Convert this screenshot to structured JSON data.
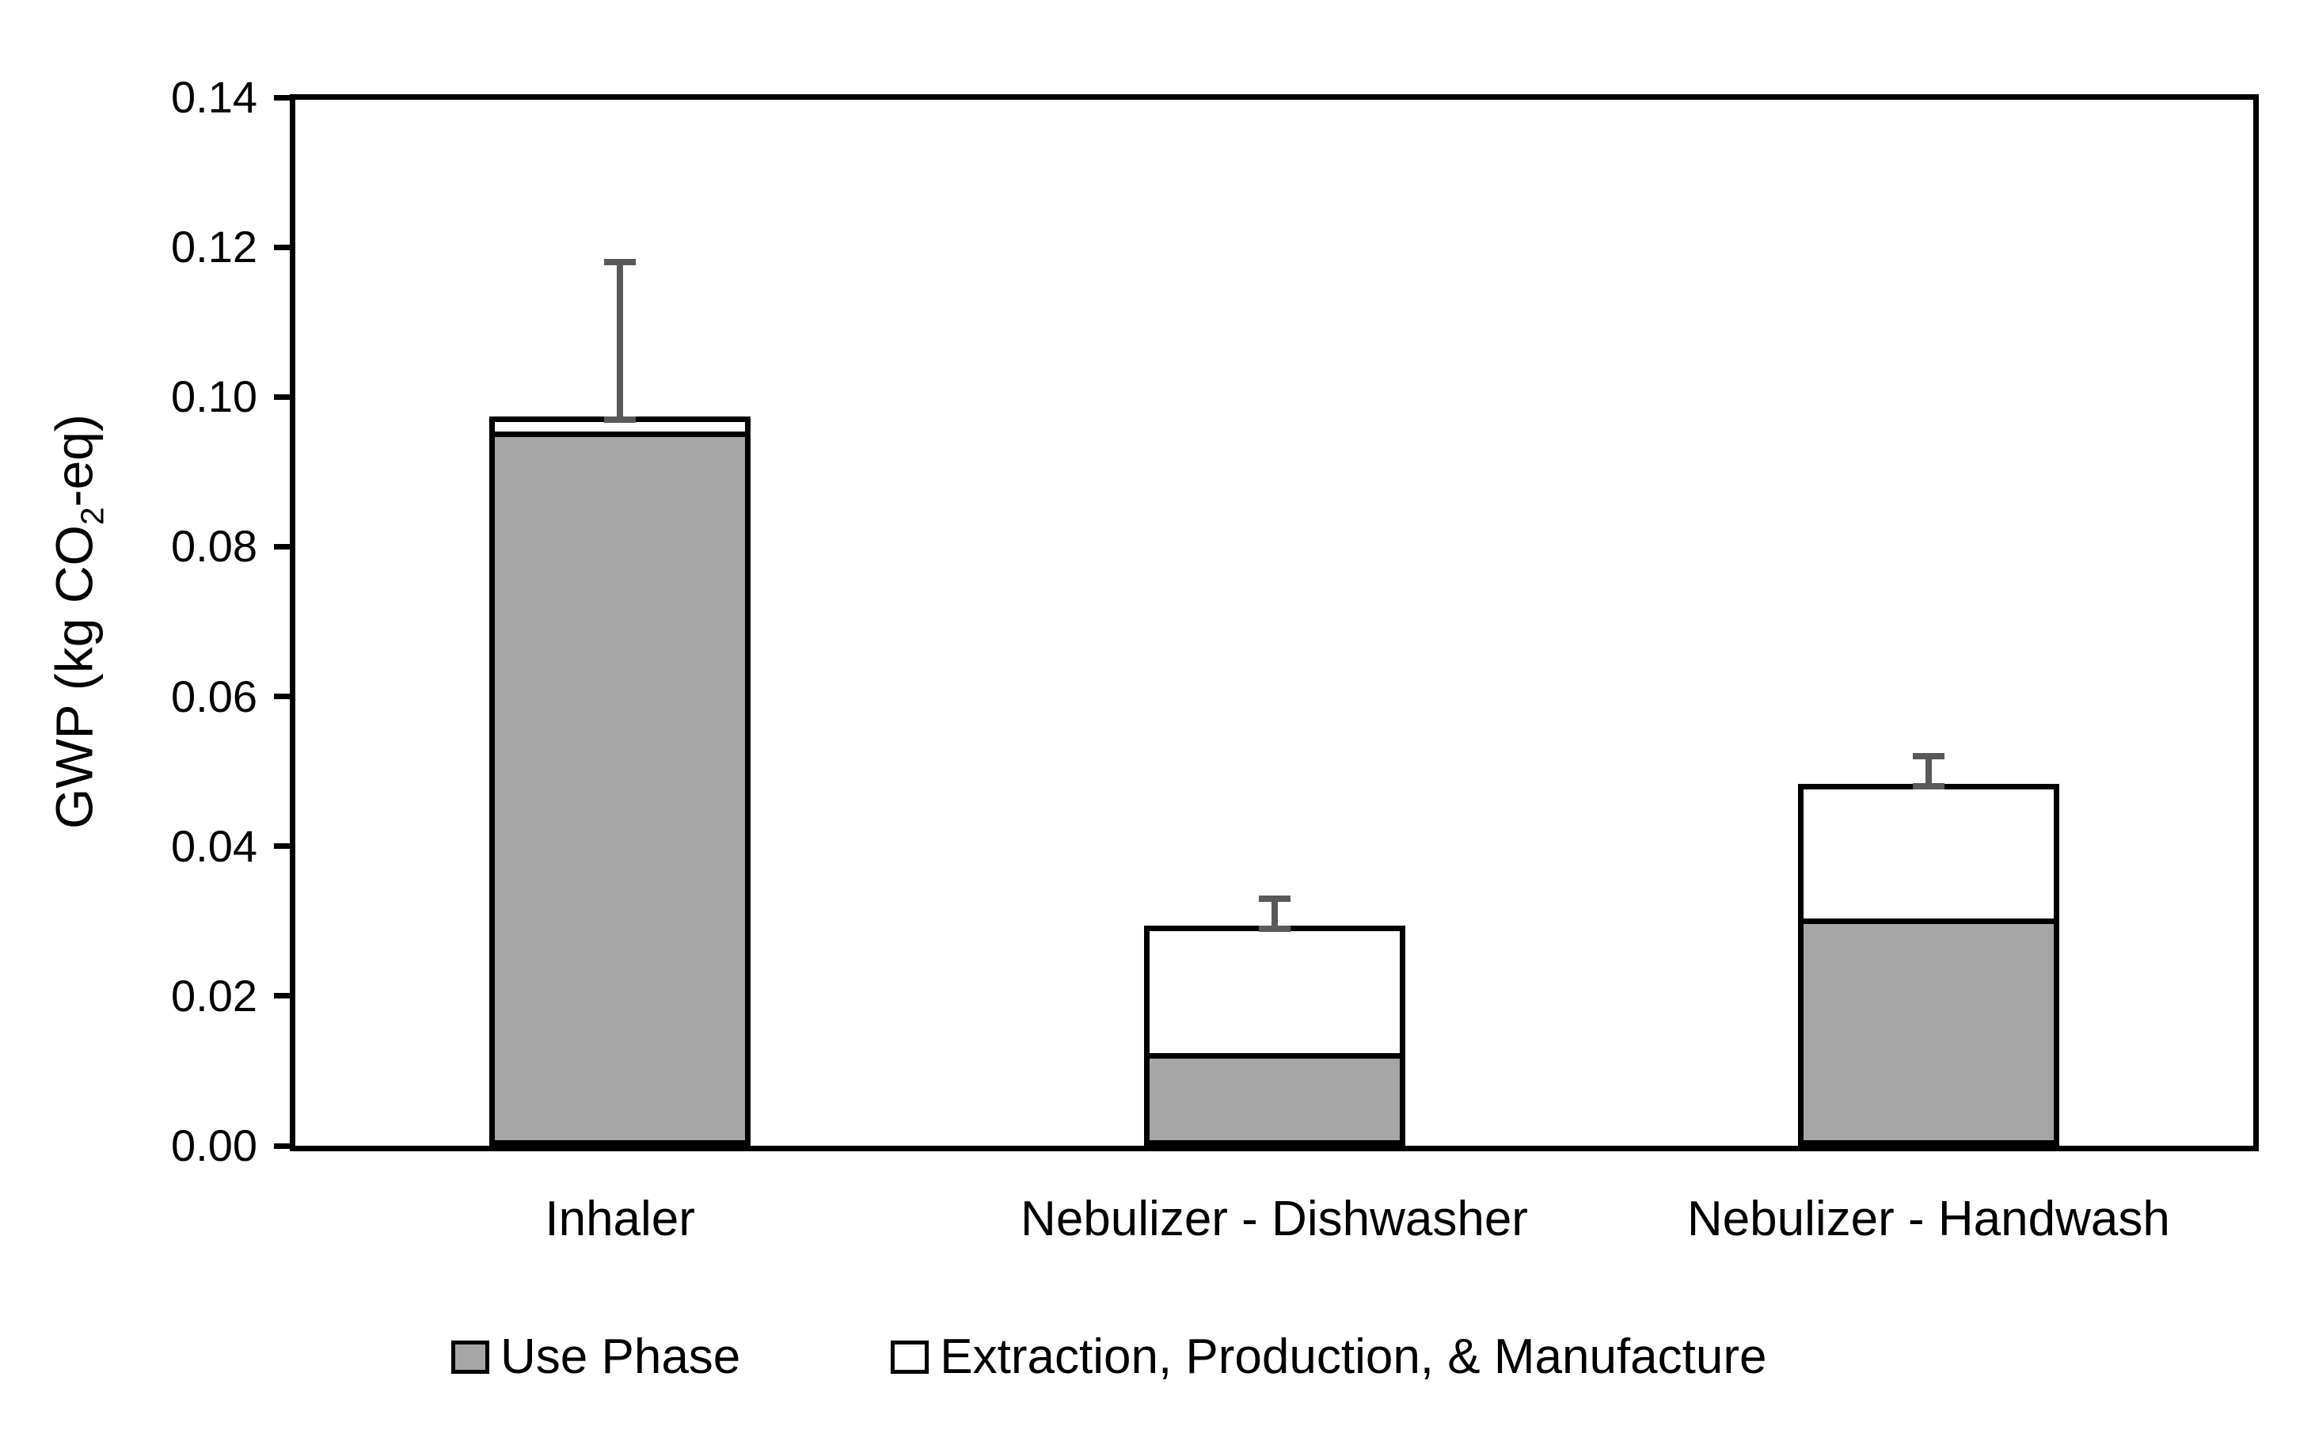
{
  "chart_data": {
    "type": "bar",
    "stacked": true,
    "title": "",
    "categories": [
      "Inhaler",
      "Nebulizer - Dishwasher",
      "Nebulizer - Handwash"
    ],
    "series": [
      {
        "name": "Use Phase",
        "color": "#A6A6A6",
        "values": [
          0.095,
          0.012,
          0.03
        ]
      },
      {
        "name": "Extraction, Production, & Manufacture",
        "color": "#FFFFFF",
        "values": [
          0.002,
          0.017,
          0.018
        ]
      }
    ],
    "totals": [
      0.097,
      0.029,
      0.048
    ],
    "error_bars": {
      "plus": [
        0.021,
        0.004,
        0.004
      ],
      "color": "#595959"
    },
    "ylabel_parts": {
      "pre": "GWP (kg CO",
      "sub": "2",
      "post": "-eq)"
    },
    "ylabel_text": "GWP (kg CO2-eq)",
    "y_ticks": [
      "0.00",
      "0.02",
      "0.04",
      "0.06",
      "0.08",
      "0.10",
      "0.12",
      "0.14"
    ],
    "ylim": [
      0,
      0.14
    ],
    "grid": false,
    "legend_position": "bottom",
    "colors": {
      "axis": "#000000",
      "bar_border": "#000000",
      "error_bar": "#595959",
      "use_phase_fill": "#A6A6A6",
      "epm_fill": "#FFFFFF"
    }
  }
}
